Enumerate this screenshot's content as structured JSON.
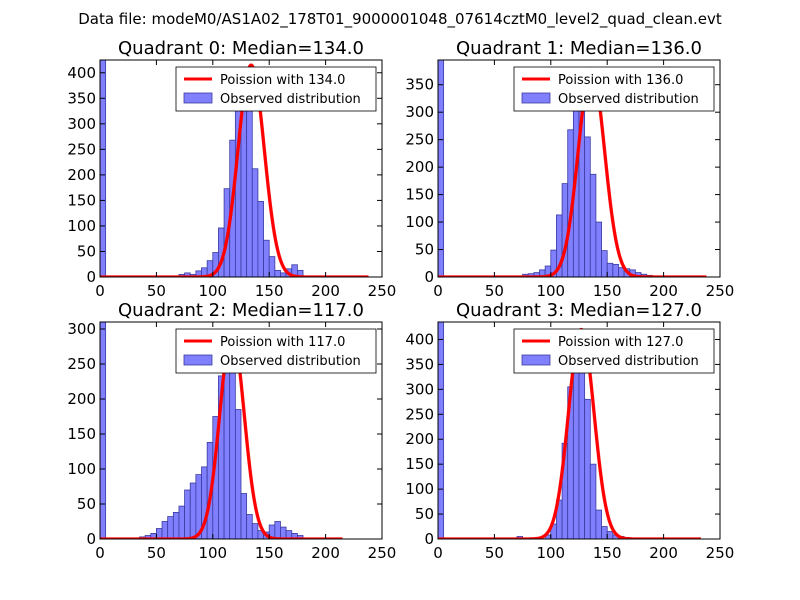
{
  "figure": {
    "suptitle": "Data file: modeM0/AS1A02_178T01_9000001048_07614cztM0_level2_quad_clean.evt"
  },
  "colors": {
    "bar_fill": "#8080ff",
    "bar_edge": "#3a3aa0",
    "curve": "#ff0000",
    "axis": "#000000",
    "background": "#ffffff"
  },
  "legend": {
    "observed_label": "Observed distribution"
  },
  "chart_data": [
    {
      "type": "bar",
      "title": "Quadrant 0: Median=134.0",
      "legend_poisson": "Poission with 134.0",
      "bin_width": 5,
      "x_start": 0,
      "counts": [
        425,
        0,
        0,
        0,
        0,
        0,
        0,
        0,
        0,
        0,
        0,
        0,
        0,
        0,
        5,
        8,
        5,
        12,
        18,
        32,
        48,
        96,
        173,
        268,
        349,
        360,
        330,
        212,
        148,
        72,
        40,
        13,
        8,
        16,
        24,
        13,
        0,
        0,
        0,
        0,
        0,
        0,
        0,
        0,
        0,
        0,
        0,
        0,
        0,
        0
      ],
      "xlim": [
        0,
        250
      ],
      "ylim": [
        0,
        425
      ],
      "xticks": [
        0,
        50,
        100,
        150,
        200,
        250
      ],
      "yticks": [
        0,
        50,
        100,
        150,
        200,
        250,
        300,
        350,
        400
      ],
      "poisson_mean": 134.0,
      "poisson_peak": 415,
      "poisson_x_range": [
        0,
        238
      ]
    },
    {
      "type": "bar",
      "title": "Quadrant 1: Median=136.0",
      "legend_poisson": "Poission with 136.0",
      "bin_width": 5,
      "x_start": 0,
      "counts": [
        395,
        0,
        0,
        0,
        0,
        0,
        0,
        0,
        0,
        0,
        0,
        0,
        0,
        0,
        0,
        5,
        6,
        8,
        13,
        20,
        49,
        113,
        170,
        268,
        320,
        332,
        255,
        187,
        100,
        48,
        25,
        23,
        17,
        15,
        13,
        8,
        5,
        3,
        0,
        0,
        0,
        0,
        0,
        0,
        0,
        0,
        0,
        0,
        0,
        0
      ],
      "xlim": [
        0,
        250
      ],
      "ylim": [
        0,
        395
      ],
      "xticks": [
        0,
        50,
        100,
        150,
        200,
        250
      ],
      "yticks": [
        0,
        50,
        100,
        150,
        200,
        250,
        300,
        350
      ],
      "poisson_mean": 136.0,
      "poisson_peak": 380,
      "poisson_x_range": [
        0,
        238
      ]
    },
    {
      "type": "bar",
      "title": "Quadrant 2: Median=117.0",
      "legend_poisson": "Poission with 117.0",
      "bin_width": 5,
      "x_start": 0,
      "counts": [
        310,
        0,
        0,
        0,
        0,
        0,
        0,
        3,
        5,
        8,
        15,
        25,
        32,
        38,
        47,
        70,
        80,
        92,
        103,
        138,
        175,
        233,
        290,
        258,
        185,
        65,
        35,
        22,
        12,
        10,
        20,
        25,
        17,
        12,
        8,
        5,
        0,
        0,
        0,
        0,
        0,
        0,
        0,
        0,
        0,
        0,
        0,
        0,
        0,
        0
      ],
      "xlim": [
        0,
        250
      ],
      "ylim": [
        0,
        310
      ],
      "xticks": [
        0,
        50,
        100,
        150,
        200,
        250
      ],
      "yticks": [
        0,
        50,
        100,
        150,
        200,
        250,
        300
      ],
      "poisson_mean": 117.0,
      "poisson_peak": 295,
      "poisson_x_range": [
        0,
        215
      ]
    },
    {
      "type": "bar",
      "title": "Quadrant 3: Median=127.0",
      "legend_poisson": "Poission with 127.0",
      "bin_width": 5,
      "x_start": 0,
      "counts": [
        435,
        0,
        0,
        0,
        0,
        0,
        0,
        0,
        0,
        0,
        0,
        0,
        0,
        0,
        5,
        0,
        0,
        0,
        0,
        8,
        30,
        78,
        192,
        305,
        392,
        350,
        280,
        150,
        58,
        25,
        15,
        8,
        5,
        3,
        0,
        0,
        0,
        0,
        0,
        0,
        0,
        0,
        0,
        0,
        0,
        0,
        0,
        0,
        0,
        0
      ],
      "xlim": [
        0,
        250
      ],
      "ylim": [
        0,
        435
      ],
      "xticks": [
        0,
        50,
        100,
        150,
        200,
        250
      ],
      "yticks": [
        0,
        50,
        100,
        150,
        200,
        250,
        300,
        350,
        400
      ],
      "poisson_mean": 127.0,
      "poisson_peak": 420,
      "poisson_x_range": [
        0,
        233
      ]
    }
  ]
}
